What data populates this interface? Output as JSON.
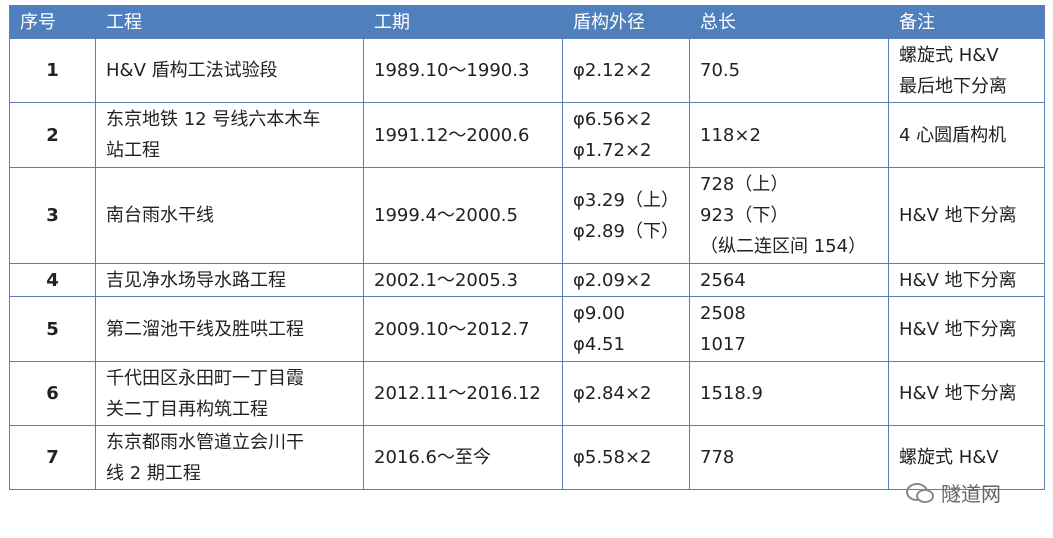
{
  "table": {
    "header": [
      "序号",
      "工程",
      "工期",
      "盾构外径",
      "总长",
      "备注"
    ],
    "rows": [
      [
        [
          "1"
        ],
        [
          "H&V 盾构工法试验段"
        ],
        [
          "1989.10～1990.3"
        ],
        [
          "φ2.12×2"
        ],
        [
          "70.5"
        ],
        [
          "螺旋式 H&V",
          "最后地下分离"
        ]
      ],
      [
        [
          "2"
        ],
        [
          "东京地铁 12 号线六本木车",
          "站工程"
        ],
        [
          "1991.12～2000.6"
        ],
        [
          "φ6.56×2",
          "φ1.72×2"
        ],
        [
          "118×2"
        ],
        [
          "4 心圆盾构机"
        ]
      ],
      [
        [
          "3"
        ],
        [
          "南台雨水干线"
        ],
        [
          "1999.4～2000.5"
        ],
        [
          "φ3.29（上）",
          "φ2.89（下）"
        ],
        [
          "728（上）",
          "923（下）",
          "（纵二连区间 154）"
        ],
        [
          "H&V 地下分离"
        ]
      ],
      [
        [
          "4"
        ],
        [
          "吉见净水场导水路工程"
        ],
        [
          "2002.1～2005.3"
        ],
        [
          "φ2.09×2"
        ],
        [
          "2564"
        ],
        [
          "H&V 地下分离"
        ]
      ],
      [
        [
          "5"
        ],
        [
          "第二溜池干线及胜哄工程"
        ],
        [
          "2009.10～2012.7"
        ],
        [
          "φ9.00",
          "φ4.51"
        ],
        [
          "2508",
          "1017"
        ],
        [
          "H&V 地下分离"
        ]
      ],
      [
        [
          "6"
        ],
        [
          "千代田区永田町一丁目霞",
          "关二丁目再构筑工程"
        ],
        [
          "2012.11～2016.12"
        ],
        [
          "φ2.84×2"
        ],
        [
          "1518.9"
        ],
        [
          "H&V 地下分离"
        ]
      ],
      [
        [
          "7"
        ],
        [
          "东京都雨水管道立会川干",
          "线 2 期工程"
        ],
        [
          "2016.6～至今"
        ],
        [
          "φ5.58×2"
        ],
        [
          "778"
        ],
        [
          "螺旋式 H&V"
        ]
      ]
    ],
    "watermark": "隧道网"
  }
}
